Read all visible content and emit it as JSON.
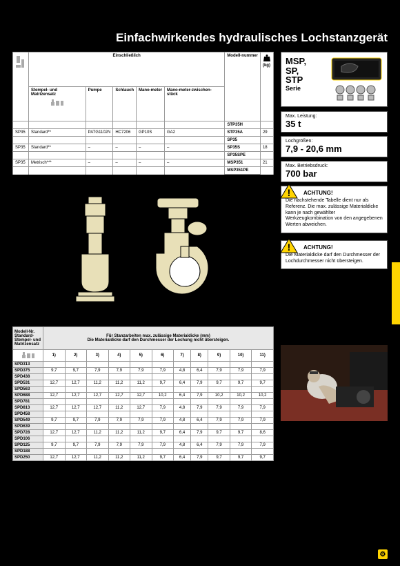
{
  "title": "Einfachwirkendes hydraulisches Lochstanzgerät",
  "topTable": {
    "superHeader": "Einschließlich",
    "cols": [
      "",
      "Stempel- und Matrizensatz",
      "Pumpe",
      "Schlauch",
      "Mano-meter",
      "Mano-meter-zwischen-stück",
      "Modell-nummer",
      "(kg)"
    ],
    "rows": [
      [
        "",
        "",
        "",
        "",
        "",
        "",
        "STP35H",
        ""
      ],
      [
        "SP35",
        "Standard**",
        "PATG1102N",
        "HC7206",
        "GP10S",
        "GA2",
        "STP35A",
        "29"
      ],
      [
        "",
        "",
        "",
        "",
        "",
        "",
        "SP35",
        ""
      ],
      [
        "SP35",
        "Standard**",
        "–",
        "–",
        "–",
        "–",
        "SP35S",
        "18"
      ],
      [
        "",
        "",
        "",
        "",
        "",
        "",
        "SP35SPE",
        ""
      ],
      [
        "SP35",
        "Metrisch***",
        "–",
        "–",
        "–",
        "–",
        "MSP351",
        "21"
      ],
      [
        "",
        "",
        "",
        "",
        "",
        "",
        "MSP351PE",
        ""
      ]
    ]
  },
  "series": {
    "names": "MSP,\nSP,\nSTP",
    "serie": "Serie"
  },
  "specs": [
    {
      "label": "Max. Leistung:",
      "value": "35 t"
    },
    {
      "label": "Lochgrößen:",
      "value": "7,9 - 20,6 mm"
    },
    {
      "label": "Max. Betriebsdruck:",
      "value": "700 bar"
    }
  ],
  "warnings": [
    {
      "heading": "ACHTUNG!",
      "text": "Die nachstehende Tabelle dient nur als Referenz. Die max. zulässige Materialdicke kann je nach gewählter Werkzeugkombination von den angegebenen Werten abweichen."
    },
    {
      "heading": "ACHTUNG!",
      "text": "Die Materialdicke darf den Durchmesser der Lochdurchmesser nicht übersteigen."
    }
  ],
  "bottomTable": {
    "rowHeaderTitle": "Modell-Nr.\nStandard-\nStempel- und\nMatrizensatz",
    "mainTitle": "Für Stanzarbeiten max. zulässige Materialdicke (mm)\nDie Materialdicke darf den Durchmesser der Lochung nicht übersteigen.",
    "numHeaders": [
      "1)",
      "2)",
      "3)",
      "4)",
      "5)",
      "6)",
      "7)",
      "8)",
      "9)",
      "10)",
      "11)"
    ],
    "rows": [
      {
        "m": "SPD313",
        "v": [
          "",
          "",
          "",
          "",
          "",
          "",
          "",
          "",
          "",
          "",
          ""
        ]
      },
      {
        "m": "SPD375",
        "v": [
          "9,7",
          "9,7",
          "7,9",
          "7,9",
          "7,9",
          "7,9",
          "4,8",
          "6,4",
          "7,9",
          "7,9",
          "7,9"
        ]
      },
      {
        "m": "SPD438",
        "v": [
          "",
          "",
          "",
          "",
          "",
          "",
          "",
          "",
          "",
          "",
          ""
        ]
      },
      {
        "m": "SPD531",
        "v": [
          "12,7",
          "12,7",
          "11,2",
          "11,2",
          "11,2",
          "9,7",
          "6,4",
          "7,9",
          "9,7",
          "9,7",
          "9,7"
        ]
      },
      {
        "m": "SPD563",
        "v": [
          "",
          "",
          "",
          "",
          "",
          "",
          "",
          "",
          "",
          "",
          ""
        ]
      },
      {
        "m": "SPD688",
        "v": [
          "12,7",
          "12,7",
          "12,7",
          "12,7",
          "12,7",
          "10,2",
          "6,4",
          "7,9",
          "10,2",
          "10,2",
          "10,2"
        ]
      },
      {
        "m": "SPD781",
        "v": [
          "",
          "",
          "",
          "",
          "",
          "",
          "",
          "",
          "",
          "",
          ""
        ]
      },
      {
        "m": "SPD813",
        "v": [
          "12,7",
          "12,7",
          "12,7",
          "11,2",
          "12,7",
          "7,9",
          "4,8",
          "7,9",
          "7,9",
          "7,9",
          "7,9"
        ]
      },
      {
        "m": "SPD458",
        "v": [
          "",
          "",
          "",
          "",
          "",
          "",
          "",
          "",
          "",
          "",
          ""
        ]
      },
      {
        "m": "SPD549",
        "v": [
          "9,7",
          "9,7",
          "7,9",
          "7,9",
          "7,9",
          "7,9",
          "4,8",
          "6,4",
          "7,9",
          "7,9",
          "7,9"
        ]
      },
      {
        "m": "SPD639",
        "v": [
          "",
          "",
          "",
          "",
          "",
          "",
          "",
          "",
          "",
          "",
          ""
        ]
      },
      {
        "m": "SPD728",
        "v": [
          "12,7",
          "12,7",
          "11,2",
          "11,2",
          "11,2",
          "9,7",
          "6,4",
          "7,9",
          "9,7",
          "9,7",
          "8,6"
        ]
      },
      {
        "m": "SPD106",
        "v": [
          "",
          "",
          "",
          "",
          "",
          "",
          "",
          "",
          "",
          "",
          ""
        ]
      },
      {
        "m": "SPD125",
        "v": [
          "9,7",
          "9,7",
          "7,9",
          "7,9",
          "7,9",
          "7,9",
          "4,8",
          "6,4",
          "7,9",
          "7,9",
          "7,9"
        ]
      },
      {
        "m": "SPD188",
        "v": [
          "",
          "",
          "",
          "",
          "",
          "",
          "",
          "",
          "",
          "",
          ""
        ]
      },
      {
        "m": "SPD250",
        "v": [
          "12,7",
          "12,7",
          "11,2",
          "11,2",
          "11,2",
          "9,7",
          "6,4",
          "7,9",
          "9,7",
          "9,7",
          "9,7"
        ]
      }
    ]
  },
  "colors": {
    "brand": "#ffd400",
    "header_bg": "#e8e8e8",
    "border": "#999999",
    "diagram_fill": "#e8e0b8"
  },
  "pageIcon": "⚙"
}
